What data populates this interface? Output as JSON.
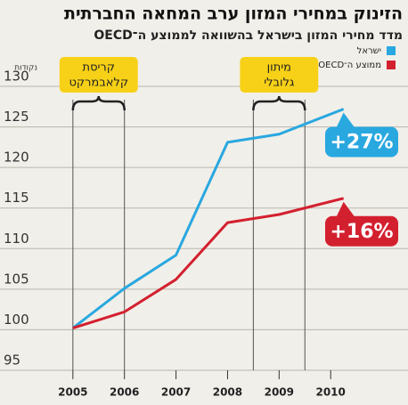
{
  "chart_data": {
    "type": "line",
    "title": "הזינוק במחירי המזון ערב המחאה החברתית",
    "subtitle": "מדד מחירי המזון בישראל בהשוואה לממוצע ה־OECD",
    "y_label": "נקודות",
    "x": [
      2005,
      2006,
      2007,
      2008,
      2009,
      2010.25
    ],
    "series": [
      {
        "name": "ישראל",
        "color": "#29a8e0",
        "values": [
          100.2,
          105.1,
          109.2,
          123.1,
          124.1,
          127.2
        ],
        "end_label": {
          "value": 27,
          "label": "+27%"
        }
      },
      {
        "name": "ממוצע ה־OECD",
        "color": "#d3202f",
        "values": [
          100.2,
          102.2,
          106.2,
          113.2,
          114.2,
          116.2
        ],
        "end_label": {
          "value": 16,
          "label": "+16%"
        }
      }
    ],
    "xlim": [
      2004.45,
      2011.5
    ],
    "xticks": [
      2005,
      2006,
      2007,
      2008,
      2009,
      2010
    ],
    "ylim": [
      95,
      130
    ],
    "yticks": [
      95,
      100,
      105,
      110,
      115,
      120,
      125,
      130
    ],
    "grid": true,
    "annotations": [
      {
        "lines": [
          "קריסת",
          "קלאבמרקט"
        ],
        "span": [
          2005,
          2006
        ]
      },
      {
        "lines": [
          "מיתון",
          "גלובלי"
        ],
        "span": [
          2008.5,
          2009.5
        ]
      }
    ]
  }
}
